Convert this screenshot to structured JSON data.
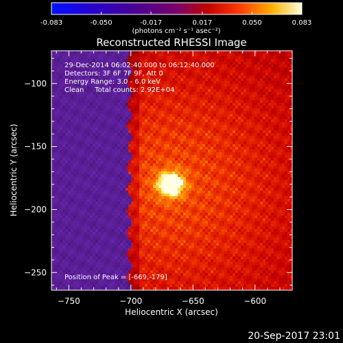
{
  "chart_data": {
    "type": "heatmap",
    "title": "Reconstructed RHESSI Image",
    "xlabel": "Heliocentric X (arcsec)",
    "ylabel": "Heliocentric Y (arcsec)",
    "xlim": [
      -764,
      -570
    ],
    "ylim": [
      -264,
      -74
    ],
    "x_ticks": [
      -750,
      -700,
      -650,
      -600
    ],
    "y_ticks": [
      -100,
      -150,
      -200,
      -250
    ],
    "colorbar": {
      "range": [
        -0.083,
        0.083
      ],
      "ticks": [
        -0.083,
        -0.05,
        -0.017,
        0.017,
        0.05,
        0.083
      ],
      "tick_labels": [
        "-0.083",
        "-0.050",
        "-0.017",
        "0.017",
        "0.050",
        "0.083"
      ],
      "label": "(photons cm⁻² s⁻¹ asec⁻²)"
    },
    "peak": {
      "x": -669,
      "y": -179
    },
    "divide_x": -700,
    "annotations": [
      "29-Dec-2014 06:02:40.000 to 06:12:40.000",
      "Detectors: 3F 6F 7F 9F, Att 0",
      "Energy Range: 3.0 - 6.0 keV",
      "Clean     Total counts: 2.92E+04"
    ],
    "peak_label": "Position of Peak = [-669,-179]"
  },
  "footer": {
    "timestamp": "20-Sep-2017 23:01"
  }
}
